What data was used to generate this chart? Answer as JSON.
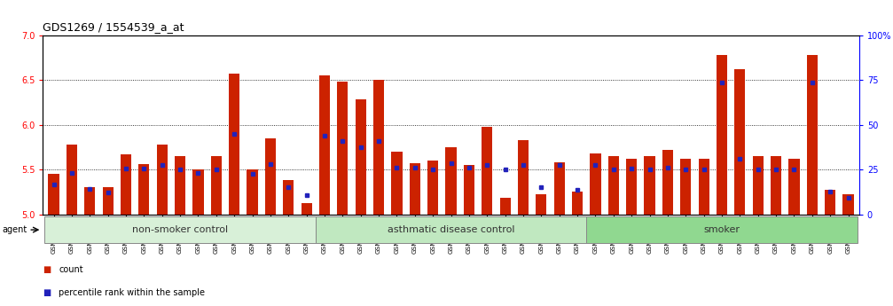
{
  "title": "GDS1269 / 1554539_a_at",
  "ylim_left": [
    5.0,
    7.0
  ],
  "ylim_right": [
    0,
    100
  ],
  "yticks_left": [
    5.0,
    5.5,
    6.0,
    6.5,
    7.0
  ],
  "yticks_right": [
    0,
    25,
    50,
    75,
    100
  ],
  "ytick_labels_right": [
    "0",
    "25",
    "50",
    "75",
    "100%"
  ],
  "samples": [
    "GSM38345",
    "GSM38346",
    "GSM38348",
    "GSM38350",
    "GSM38351",
    "GSM38353",
    "GSM38355",
    "GSM38356",
    "GSM38358",
    "GSM38362",
    "GSM38368",
    "GSM38371",
    "GSM38373",
    "GSM38377",
    "GSM38385",
    "GSM38361",
    "GSM38363",
    "GSM38364",
    "GSM38365",
    "GSM38370",
    "GSM38372",
    "GSM38375",
    "GSM38378",
    "GSM38379",
    "GSM38381",
    "GSM38383",
    "GSM38386",
    "GSM38387",
    "GSM38388",
    "GSM38389",
    "GSM38347",
    "GSM38349",
    "GSM38352",
    "GSM38354",
    "GSM38357",
    "GSM38359",
    "GSM38360",
    "GSM38366",
    "GSM38367",
    "GSM38369",
    "GSM38374",
    "GSM38376",
    "GSM38380",
    "GSM38382",
    "GSM38384"
  ],
  "red_values": [
    5.45,
    5.78,
    5.3,
    5.3,
    5.67,
    5.56,
    5.78,
    5.65,
    5.5,
    5.65,
    6.57,
    5.5,
    5.85,
    5.38,
    5.12,
    6.55,
    6.48,
    6.28,
    6.5,
    5.7,
    5.57,
    5.6,
    5.75,
    5.55,
    5.98,
    5.18,
    5.83,
    5.22,
    5.58,
    5.25,
    5.68,
    5.65,
    5.62,
    5.65,
    5.72,
    5.62,
    5.62,
    6.78,
    6.62,
    5.65,
    5.65,
    5.62,
    6.78,
    5.27,
    5.22
  ],
  "blue_values": [
    5.33,
    5.46,
    5.28,
    5.24,
    5.51,
    5.51,
    5.55,
    5.5,
    5.46,
    5.5,
    5.9,
    5.45,
    5.56,
    5.3,
    5.21,
    5.88,
    5.82,
    5.75,
    5.82,
    5.52,
    5.52,
    5.5,
    5.57,
    5.52,
    5.55,
    5.5,
    5.55,
    5.3,
    5.55,
    5.27,
    5.55,
    5.5,
    5.51,
    5.5,
    5.52,
    5.5,
    5.5,
    6.47,
    5.62,
    5.5,
    5.5,
    5.5,
    6.47,
    5.25,
    5.18
  ],
  "groups": [
    {
      "label": "non-smoker control",
      "start": 0,
      "end": 15,
      "color": "#d8f0d8"
    },
    {
      "label": "asthmatic disease control",
      "start": 15,
      "end": 30,
      "color": "#c0e8c0"
    },
    {
      "label": "smoker",
      "start": 30,
      "end": 45,
      "color": "#90d890"
    }
  ],
  "bar_color_red": "#cc2200",
  "bar_color_blue": "#2222bb",
  "background_color": "#ffffff",
  "title_fontsize": 9,
  "legend_fontsize": 7,
  "group_label_fontsize": 8,
  "base_value": 5.0
}
